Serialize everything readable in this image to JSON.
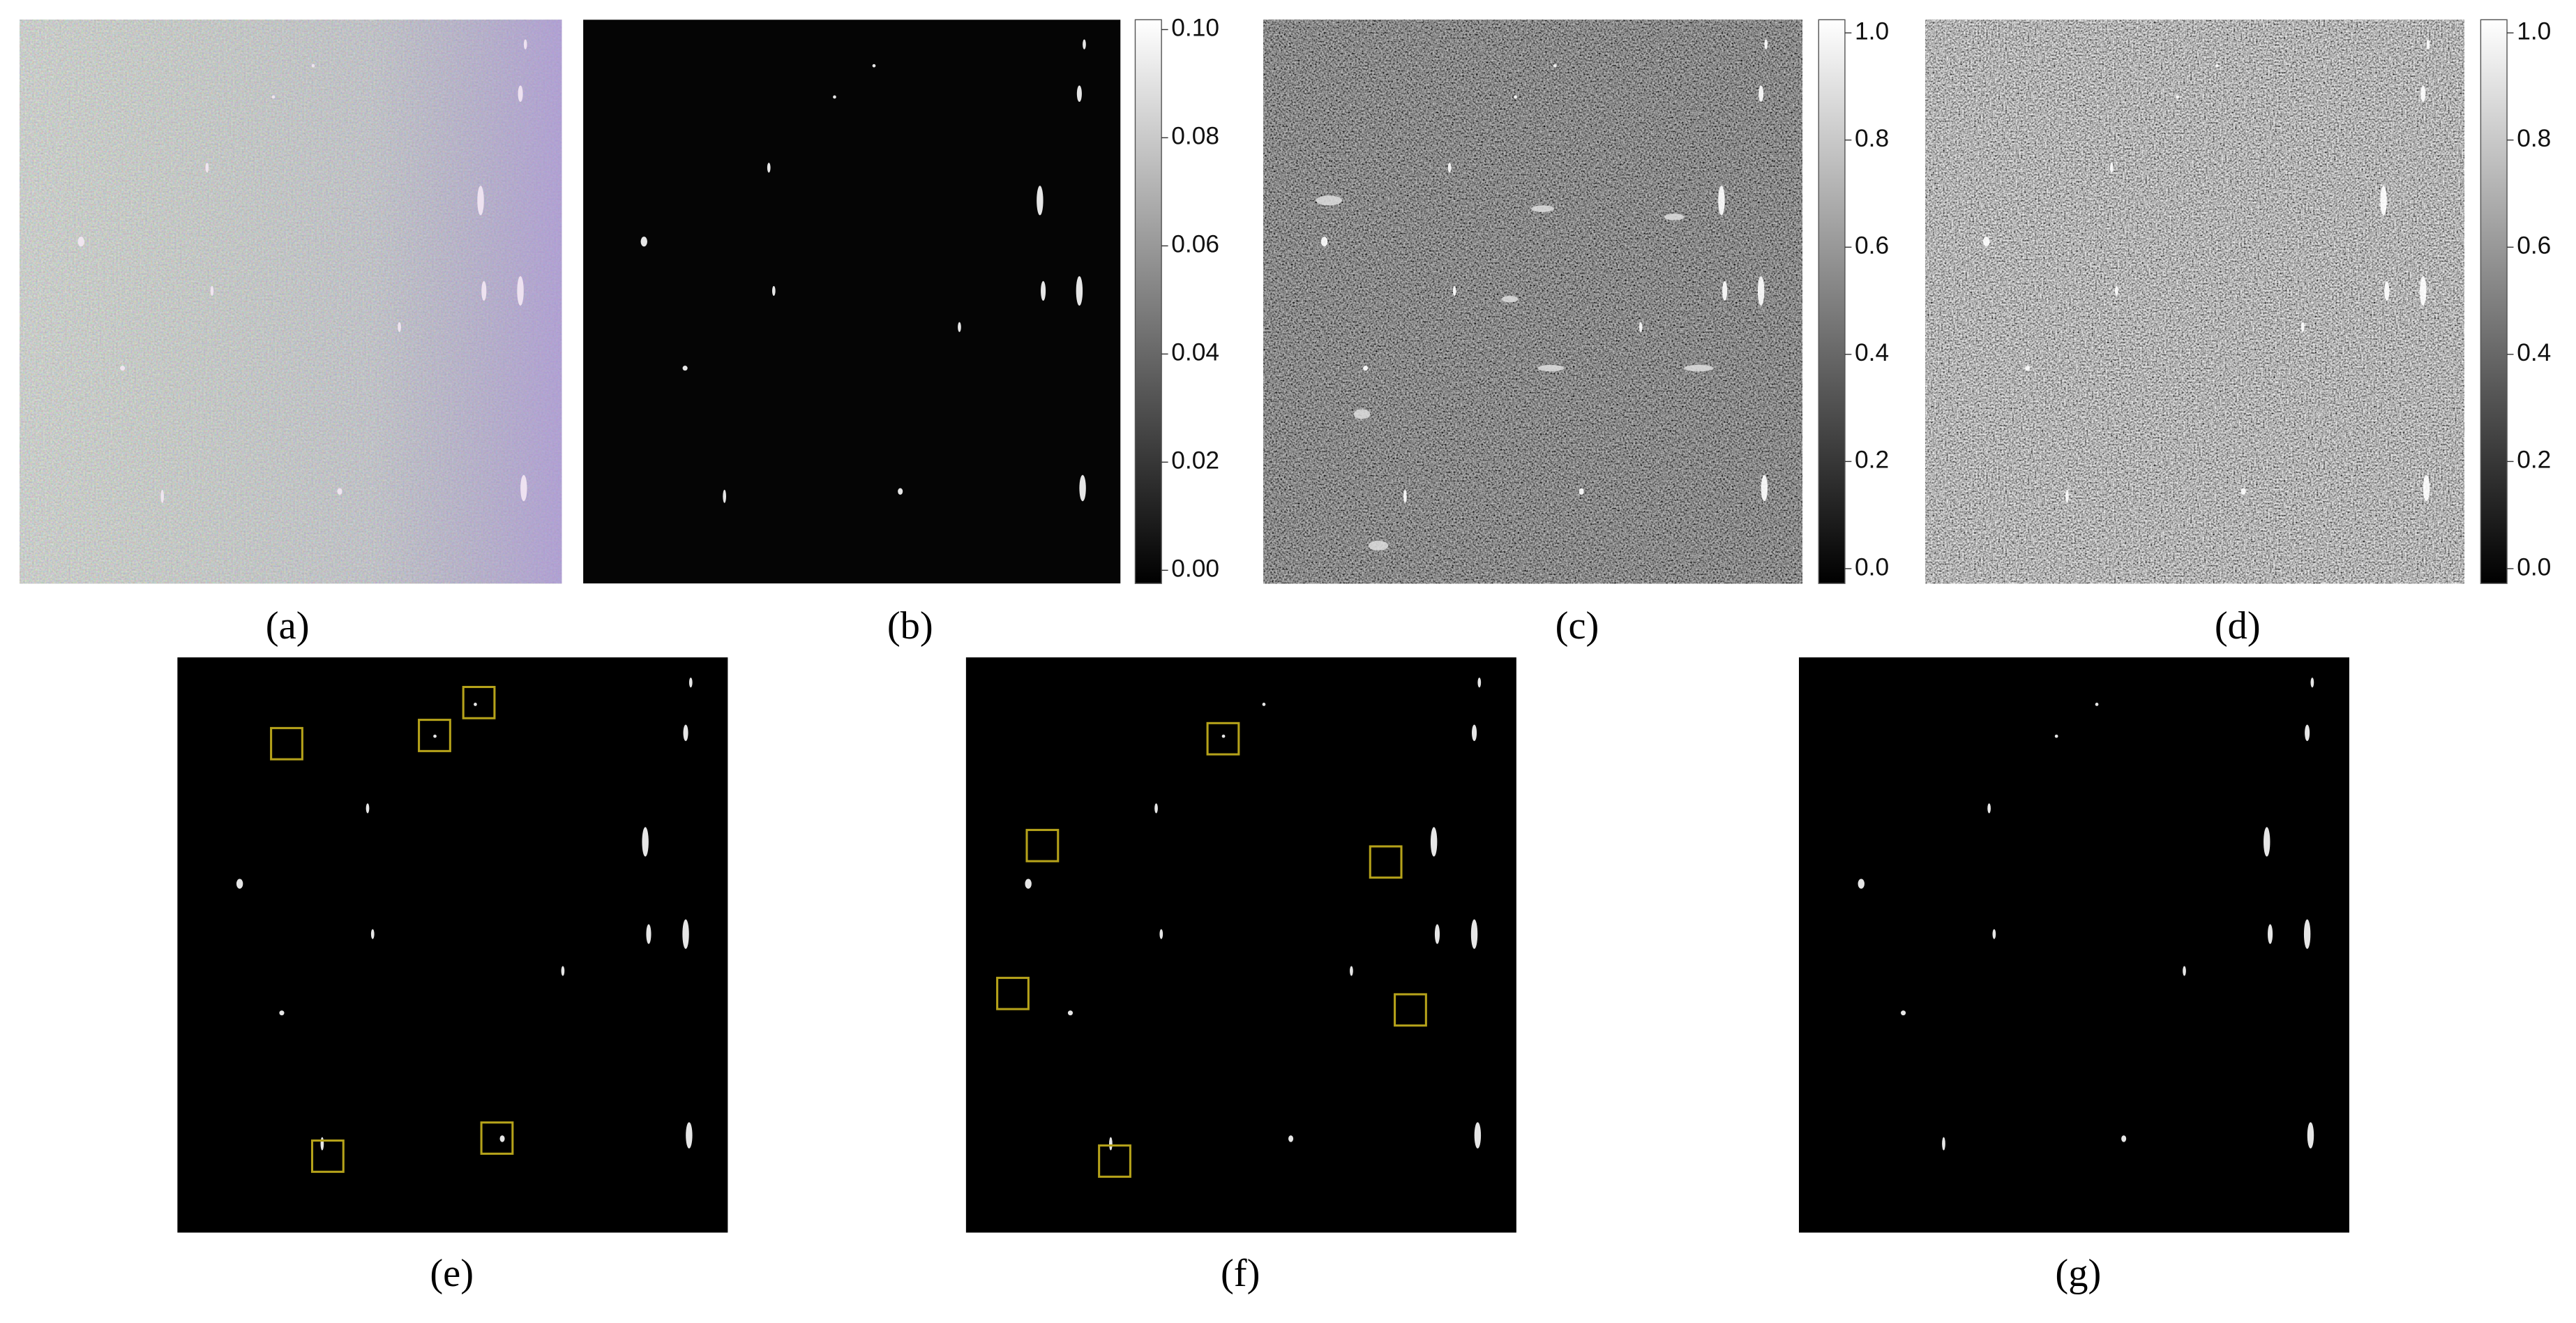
{
  "panels": [
    {
      "label": "(a)"
    },
    {
      "label": "(b)"
    },
    {
      "label": "(c)"
    },
    {
      "label": "(d)"
    },
    {
      "label": "(e)"
    },
    {
      "label": "(f)"
    },
    {
      "label": "(g)"
    }
  ],
  "colorbars": [
    {
      "panel": "(b)",
      "ticks": [
        "0.10",
        "0.08",
        "0.06",
        "0.04",
        "0.02",
        "0.00"
      ]
    },
    {
      "panel": "(c)",
      "ticks": [
        "1.0",
        "0.8",
        "0.6",
        "0.4",
        "0.2",
        "0.0"
      ]
    },
    {
      "panel": "(d)",
      "ticks": [
        "1.0",
        "0.8",
        "0.6",
        "0.4",
        "0.2",
        "0.0"
      ]
    }
  ]
}
